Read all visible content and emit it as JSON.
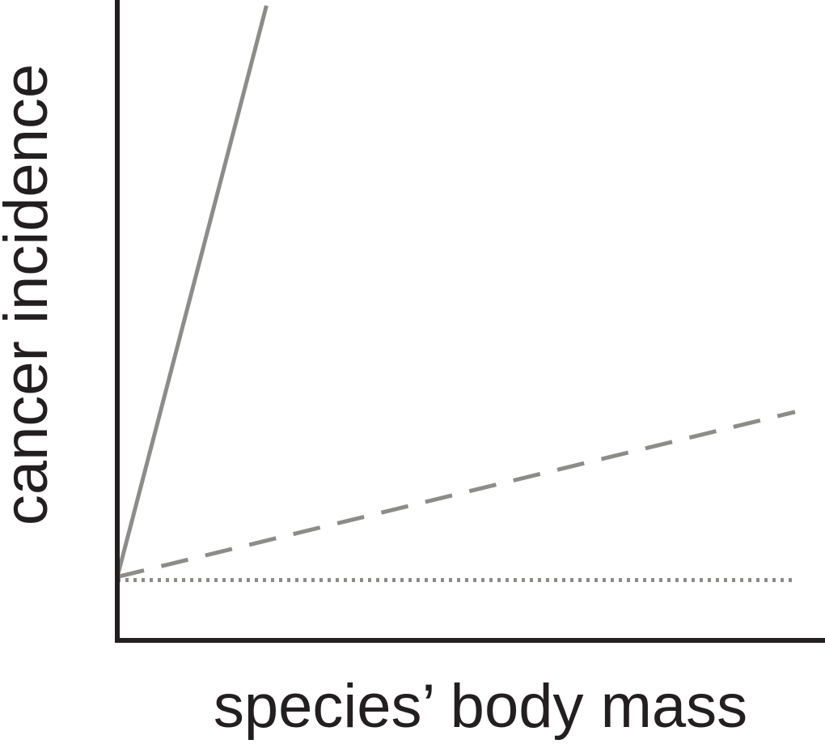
{
  "chart_data": {
    "type": "line",
    "title": "",
    "xlabel": "species’ body mass",
    "ylabel": "cancer incidence",
    "x_ticks": false,
    "y_ticks": false,
    "grid": false,
    "legend": "none",
    "xlim": [
      0,
      100
    ],
    "ylim": [
      0,
      100
    ],
    "series": [
      {
        "style": "solid",
        "color": "#8c8d89",
        "x": [
          0,
          22
        ],
        "y": [
          10,
          100
        ]
      },
      {
        "style": "dashed",
        "color": "#8c8d89",
        "x": [
          0,
          100
        ],
        "y": [
          10,
          36
        ]
      },
      {
        "style": "dotted",
        "color": "#8c8d89",
        "x": [
          0,
          100
        ],
        "y": [
          9.5,
          9.5
        ]
      }
    ],
    "axis_color": "#231f20"
  }
}
